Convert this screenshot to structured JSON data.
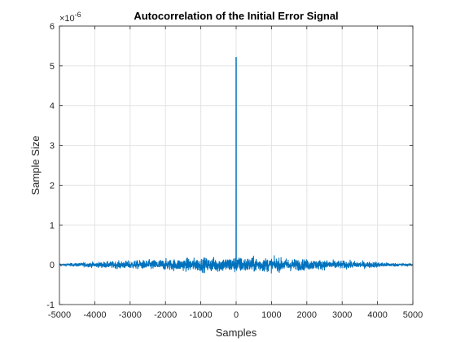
{
  "chart_data": {
    "type": "line",
    "title": "Autocorrelation of the Initial Error Signal",
    "xlabel": "Samples",
    "ylabel": "Sample Size",
    "y_exponent_label": "×10",
    "y_exponent_value": "-6",
    "xlim": [
      -5000,
      5000
    ],
    "ylim": [
      -1,
      6
    ],
    "y_scale_factor": 1e-06,
    "x_ticks": [
      -5000,
      -4000,
      -3000,
      -2000,
      -1000,
      0,
      1000,
      2000,
      3000,
      4000,
      5000
    ],
    "x_tick_labels": [
      "-5000",
      "-4000",
      "-3000",
      "-2000",
      "-1000",
      "0",
      "1000",
      "2000",
      "3000",
      "4000",
      "5000"
    ],
    "y_ticks": [
      -1,
      0,
      1,
      2,
      3,
      4,
      5,
      6
    ],
    "y_tick_labels": [
      "-1",
      "0",
      "1",
      "2",
      "3",
      "4",
      "5",
      "6"
    ],
    "grid": true,
    "series": [
      {
        "color": "#0072BD",
        "peak": {
          "x": 0,
          "y": 5.22
        },
        "noise_envelope": [
          {
            "x": -5000,
            "amp": 0.02
          },
          {
            "x": -4000,
            "amp": 0.06
          },
          {
            "x": -3000,
            "amp": 0.09
          },
          {
            "x": -2000,
            "amp": 0.12
          },
          {
            "x": -1000,
            "amp": 0.15
          },
          {
            "x": 0,
            "amp": 0.17
          },
          {
            "x": 1000,
            "amp": 0.15
          },
          {
            "x": 2000,
            "amp": 0.12
          },
          {
            "x": 3000,
            "amp": 0.09
          },
          {
            "x": 4000,
            "amp": 0.06
          },
          {
            "x": 5000,
            "amp": 0.02
          }
        ]
      }
    ]
  }
}
